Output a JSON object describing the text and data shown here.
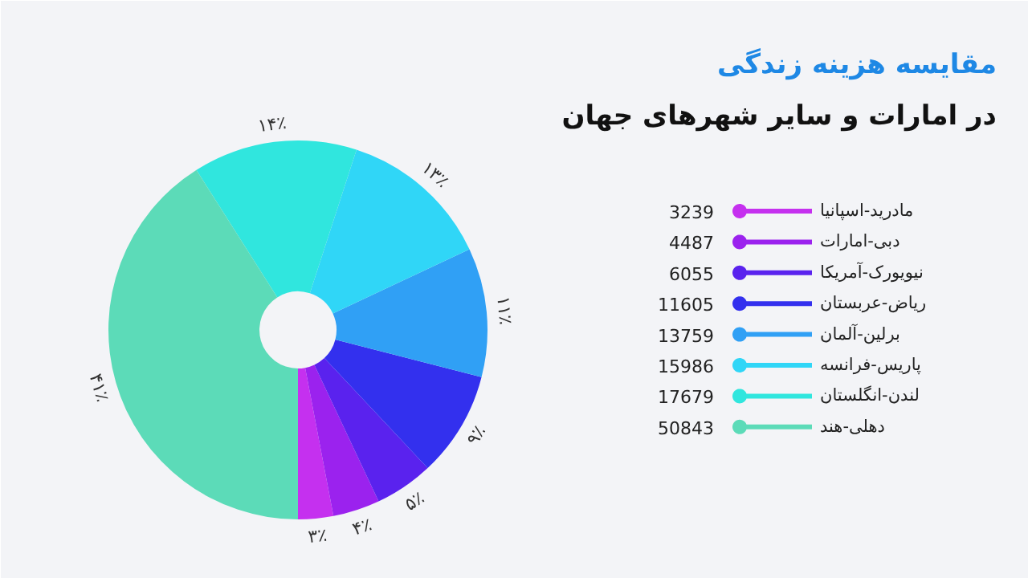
{
  "chart_data": {
    "type": "donut",
    "title": "مقایسه هزینه زندگی",
    "subtitle": "در امارات و سایر شهرهای جهان",
    "categories": [
      "مادرید-اسپانیا",
      "دبی-امارات",
      "نیویورک-آمریکا",
      "ریاض-عربستان",
      "برلین-آلمان",
      "پاریس-فرانسه",
      "لندن-انگلستان",
      "دهلی-هند"
    ],
    "values": [
      3,
      4,
      5,
      9,
      11,
      13,
      14,
      41
    ],
    "value_labels": [
      "۳٪",
      "۴٪",
      "۵٪",
      "۹٪",
      "۱۱٪",
      "۱۳٪",
      "۱۴٪",
      "۴۱٪"
    ],
    "annotations": [
      "3239",
      "4487",
      "6055",
      "11605",
      "13759",
      "15986",
      "17679",
      "50843"
    ],
    "colors": [
      "#c530ef",
      "#9b22ee",
      "#5a22ee",
      "#3330ee",
      "#30a0f5",
      "#30d6f7",
      "#30e6de",
      "#5cdbb8"
    ],
    "legend": "right"
  }
}
